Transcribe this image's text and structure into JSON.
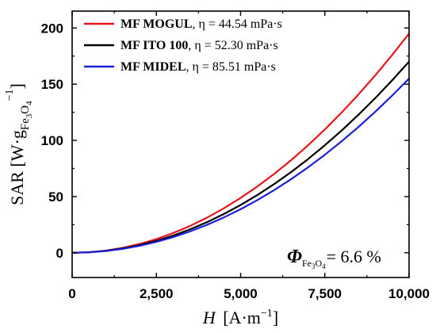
{
  "chart_data": {
    "type": "line",
    "xlabel": {
      "symbol": "H",
      "unit_base": "[A·m",
      "unit_exp": "−1",
      "unit_close": "]"
    },
    "ylabel": {
      "prefix": "SAR [W·g",
      "sub_fe": "Fe",
      "sub_3": "3",
      "sub_o": "O",
      "sub_4": "4",
      "sup": "−1",
      "close": "]"
    },
    "xlim": [
      0,
      10000
    ],
    "ylim": [
      -22,
      215
    ],
    "xticks": [
      0,
      2500,
      5000,
      7500,
      10000
    ],
    "xtick_labels": [
      "0",
      "2,500",
      "5,000",
      "7,500",
      "10,000"
    ],
    "yticks": [
      0,
      50,
      100,
      150,
      200
    ],
    "ytick_labels": [
      "0",
      "50",
      "100",
      "150",
      "200"
    ],
    "x": [
      0,
      500,
      1000,
      1500,
      2000,
      2500,
      3000,
      3500,
      4000,
      4500,
      5000,
      5500,
      6000,
      6500,
      7000,
      7500,
      8000,
      8500,
      9000,
      9500,
      10000
    ],
    "series": [
      {
        "name": "MF MOGUL",
        "eta": ", η = 44.54 mPa·s",
        "color": "#e8161b",
        "values": [
          0,
          0.49,
          1.95,
          4.39,
          7.8,
          12.19,
          17.55,
          23.89,
          31.2,
          39.49,
          48.75,
          58.99,
          70.2,
          82.39,
          95.55,
          109.69,
          124.8,
          140.89,
          157.95,
          175.99,
          195
        ]
      },
      {
        "name": "MF ITO 100",
        "eta": ", η = 52.30 mPa·s",
        "color": "#000000",
        "values": [
          0,
          0.43,
          1.7,
          3.83,
          6.8,
          10.63,
          15.3,
          20.83,
          27.2,
          34.43,
          42.5,
          51.43,
          61.2,
          71.83,
          83.3,
          95.63,
          108.8,
          122.83,
          137.7,
          153.43,
          170
        ]
      },
      {
        "name": "MF MIDEL",
        "eta": ", η = 85.51 mPa·s",
        "color": "#1a1fd6",
        "values": [
          0,
          0.39,
          1.55,
          3.49,
          6.2,
          9.69,
          13.95,
          18.99,
          24.8,
          31.39,
          38.75,
          46.89,
          55.8,
          65.49,
          75.95,
          87.19,
          99.2,
          111.99,
          125.55,
          139.89,
          155
        ]
      }
    ],
    "annotation": {
      "symbol": "Φ",
      "sub_fe": "Fe",
      "sub_3": "3",
      "sub_o": "O",
      "sub_4": "4",
      "value": "= 6.6 %"
    },
    "legend_position": "top-left",
    "grid": false
  }
}
